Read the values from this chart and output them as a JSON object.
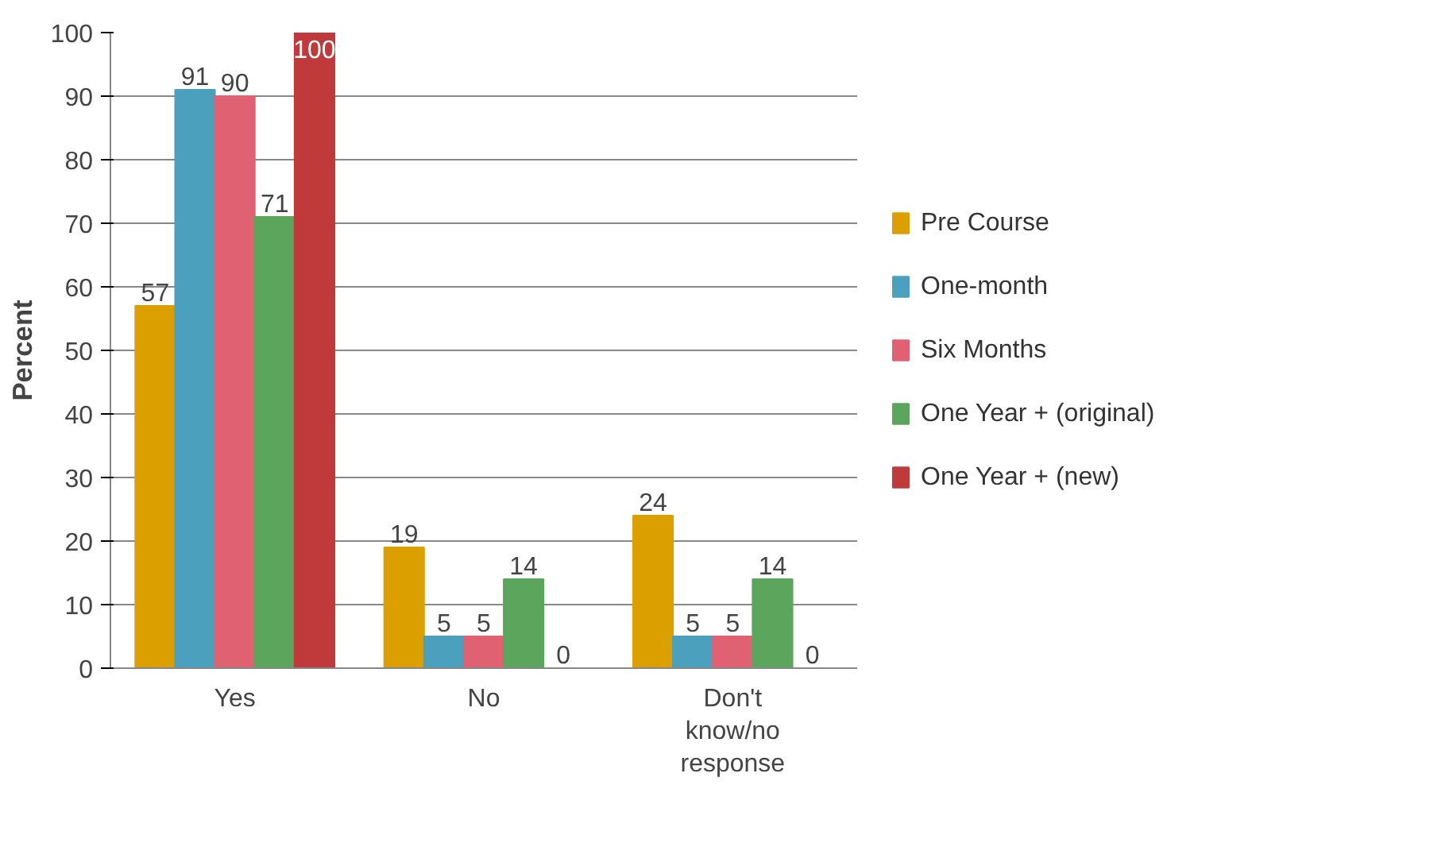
{
  "chart_data": {
    "type": "bar",
    "ylabel": "Percent",
    "categories": [
      "Yes",
      "No",
      "Don't know/no response"
    ],
    "series": [
      {
        "name": "Pre Course",
        "color": "#dc9f00",
        "values": [
          57,
          19,
          24
        ]
      },
      {
        "name": "One-month",
        "color": "#4ba0be",
        "values": [
          91,
          5,
          5
        ]
      },
      {
        "name": "Six Months",
        "color": "#e06272",
        "values": [
          90,
          5,
          5
        ]
      },
      {
        "name": "One Year + (original)",
        "color": "#5ba55d",
        "values": [
          71,
          14,
          14
        ]
      },
      {
        "name": "One Year + (new)",
        "color": "#c03a3c",
        "values": [
          100,
          0,
          0
        ]
      }
    ],
    "ylim": [
      0,
      100
    ],
    "yticks": [
      0,
      10,
      20,
      30,
      40,
      50,
      60,
      70,
      80,
      90,
      100
    ],
    "grid": "y",
    "legend": "right",
    "data_labels": true
  }
}
